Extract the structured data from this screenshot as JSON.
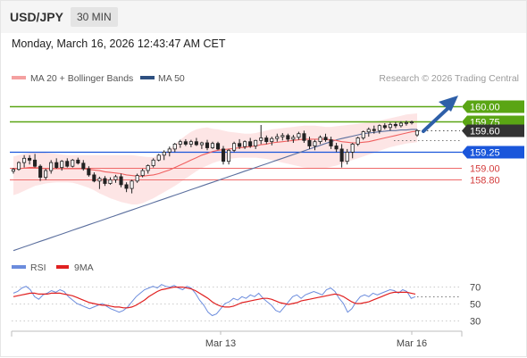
{
  "header": {
    "symbol": "USD/JPY",
    "timeframe": "30 MIN",
    "datetime": "Monday, March 16, 2026 12:43:47 AM CET"
  },
  "legend": {
    "ma20_bb": "MA 20 + Bollinger Bands",
    "ma50": "MA 50",
    "copyright": "Research © 2026 Trading Central",
    "rsi": "RSI",
    "rsi_ma": "9MA"
  },
  "colors": {
    "candle": "#222222",
    "ma20": "#f06060",
    "bb_fill": "#fde0e0",
    "ma50": "#5b6f9e",
    "resistance": "#5aa514",
    "support": "#1a56db",
    "pivot_red": "#ef6a6a",
    "current": "#333333",
    "rsi": "#6b8cdd",
    "rsi_ma": "#e02020",
    "arrow": "#2e5fa8"
  },
  "chart_data": [
    {
      "type": "candlestick",
      "ylim": [
        157.5,
        160.3
      ],
      "x_ticks": [
        "Mar 13",
        "Mar 16"
      ],
      "levels": [
        {
          "value": 160.0,
          "label": "160.00",
          "kind": "resistance"
        },
        {
          "value": 159.75,
          "label": "159.75",
          "kind": "resistance"
        },
        {
          "value": 159.6,
          "label": "159.60",
          "kind": "current"
        },
        {
          "value": 159.25,
          "label": "159.25",
          "kind": "support"
        },
        {
          "value": 159.0,
          "label": "159.00",
          "kind": "pivot"
        },
        {
          "value": 158.8,
          "label": "158.80",
          "kind": "pivot"
        }
      ],
      "candles": [
        [
          158.94,
          158.99,
          158.9,
          158.97
        ],
        [
          158.97,
          159.1,
          158.95,
          159.08
        ],
        [
          159.08,
          159.2,
          159.0,
          159.15
        ],
        [
          159.15,
          159.2,
          159.05,
          159.12
        ],
        [
          159.12,
          159.22,
          159.0,
          159.02
        ],
        [
          159.02,
          159.05,
          158.78,
          158.84
        ],
        [
          158.84,
          158.98,
          158.8,
          158.95
        ],
        [
          158.95,
          159.12,
          158.9,
          159.08
        ],
        [
          159.08,
          159.15,
          158.98,
          159.0
        ],
        [
          159.0,
          159.12,
          158.95,
          159.1
        ],
        [
          159.1,
          159.15,
          159.0,
          159.02
        ],
        [
          159.02,
          159.14,
          159.0,
          159.12
        ],
        [
          159.12,
          159.16,
          159.05,
          159.07
        ],
        [
          159.07,
          159.12,
          158.95,
          158.98
        ],
        [
          158.98,
          159.02,
          158.85,
          158.88
        ],
        [
          158.88,
          158.92,
          158.76,
          158.78
        ],
        [
          158.78,
          158.85,
          158.65,
          158.82
        ],
        [
          158.82,
          158.86,
          158.7,
          158.74
        ],
        [
          158.74,
          158.84,
          158.72,
          158.8
        ],
        [
          158.8,
          158.88,
          158.75,
          158.85
        ],
        [
          158.85,
          158.9,
          158.68,
          158.72
        ],
        [
          158.72,
          158.76,
          158.6,
          158.66
        ],
        [
          158.66,
          158.8,
          158.58,
          158.78
        ],
        [
          158.78,
          158.9,
          158.75,
          158.87
        ],
        [
          158.87,
          158.98,
          158.84,
          158.95
        ],
        [
          158.95,
          159.05,
          158.9,
          159.03
        ],
        [
          159.03,
          159.15,
          159.0,
          159.12
        ],
        [
          159.12,
          159.22,
          159.1,
          159.2
        ],
        [
          159.2,
          159.28,
          159.12,
          159.25
        ],
        [
          159.25,
          159.34,
          159.18,
          159.3
        ],
        [
          159.3,
          159.4,
          159.25,
          159.38
        ],
        [
          159.38,
          159.45,
          159.32,
          159.42
        ],
        [
          159.42,
          159.46,
          159.35,
          159.38
        ],
        [
          159.38,
          159.45,
          159.33,
          159.42
        ],
        [
          159.42,
          159.48,
          159.35,
          159.37
        ],
        [
          159.37,
          159.42,
          159.3,
          159.4
        ],
        [
          159.4,
          159.45,
          159.28,
          159.32
        ],
        [
          159.32,
          159.42,
          159.3,
          159.39
        ],
        [
          159.39,
          159.42,
          159.28,
          159.3
        ],
        [
          159.3,
          159.35,
          159.05,
          159.1
        ],
        [
          159.1,
          159.3,
          159.05,
          159.28
        ],
        [
          159.28,
          159.42,
          159.25,
          159.39
        ],
        [
          159.39,
          159.46,
          159.3,
          159.34
        ],
        [
          159.34,
          159.44,
          159.3,
          159.42
        ],
        [
          159.42,
          159.48,
          159.32,
          159.35
        ],
        [
          159.35,
          159.45,
          159.3,
          159.44
        ],
        [
          159.44,
          159.69,
          159.38,
          159.48
        ],
        [
          159.48,
          159.52,
          159.38,
          159.42
        ],
        [
          159.42,
          159.5,
          159.36,
          159.47
        ],
        [
          159.47,
          159.55,
          159.42,
          159.5
        ],
        [
          159.5,
          159.56,
          159.44,
          159.52
        ],
        [
          159.52,
          159.55,
          159.42,
          159.46
        ],
        [
          159.46,
          159.53,
          159.4,
          159.49
        ],
        [
          159.49,
          159.58,
          159.45,
          159.55
        ],
        [
          159.55,
          159.6,
          159.4,
          159.44
        ],
        [
          159.44,
          159.5,
          159.3,
          159.35
        ],
        [
          159.35,
          159.45,
          159.28,
          159.42
        ],
        [
          159.42,
          159.52,
          159.38,
          159.49
        ],
        [
          159.49,
          159.55,
          159.42,
          159.45
        ],
        [
          159.45,
          159.5,
          159.3,
          159.35
        ],
        [
          159.35,
          159.4,
          159.25,
          159.3
        ],
        [
          159.3,
          159.38,
          159.0,
          159.1
        ],
        [
          159.1,
          159.3,
          159.05,
          159.25
        ],
        [
          159.25,
          159.4,
          159.15,
          159.38
        ],
        [
          159.38,
          159.5,
          159.35,
          159.48
        ],
        [
          159.48,
          159.6,
          159.45,
          159.58
        ],
        [
          159.58,
          159.65,
          159.5,
          159.62
        ],
        [
          159.62,
          159.68,
          159.55,
          159.6
        ],
        [
          159.6,
          159.7,
          159.55,
          159.68
        ],
        [
          159.68,
          159.72,
          159.62,
          159.65
        ],
        [
          159.65,
          159.73,
          159.6,
          159.7
        ],
        [
          159.7,
          159.74,
          159.64,
          159.68
        ],
        [
          159.68,
          159.75,
          159.65,
          159.72
        ],
        [
          159.72,
          159.76,
          159.68,
          159.73
        ],
        [
          159.73,
          159.76,
          159.7,
          159.74
        ],
        [
          159.53,
          159.62,
          159.5,
          159.6
        ]
      ],
      "ma20": [
        158.98,
        158.98,
        158.99,
        159.0,
        159.0,
        158.99,
        158.98,
        158.98,
        158.98,
        158.98,
        158.98,
        158.98,
        158.98,
        158.98,
        158.97,
        158.96,
        158.95,
        158.93,
        158.92,
        158.91,
        158.9,
        158.88,
        158.87,
        158.86,
        158.86,
        158.87,
        158.88,
        158.9,
        158.93,
        158.96,
        159.0,
        159.04,
        159.08,
        159.12,
        159.16,
        159.2,
        159.23,
        159.26,
        159.28,
        159.29,
        159.3,
        159.31,
        159.32,
        159.33,
        159.34,
        159.35,
        159.37,
        159.38,
        159.4,
        159.41,
        159.42,
        159.43,
        159.44,
        159.45,
        159.46,
        159.46,
        159.46,
        159.46,
        159.46,
        159.45,
        159.44,
        159.42,
        159.41,
        159.4,
        159.4,
        159.41,
        159.42,
        159.44,
        159.46,
        159.48,
        159.5,
        159.52,
        159.54,
        159.56,
        159.58,
        159.59
      ],
      "bb_upper": [
        159.18,
        159.2,
        159.22,
        159.24,
        159.25,
        159.25,
        159.24,
        159.23,
        159.22,
        159.21,
        159.2,
        159.2,
        159.2,
        159.2,
        159.2,
        159.2,
        159.2,
        159.2,
        159.2,
        159.2,
        159.2,
        159.2,
        159.2,
        159.19,
        159.18,
        159.17,
        159.17,
        159.19,
        159.23,
        159.3,
        159.37,
        159.45,
        159.52,
        159.58,
        159.62,
        159.64,
        159.65,
        159.63,
        159.62,
        159.6,
        159.58,
        159.57,
        159.56,
        159.55,
        159.55,
        159.56,
        159.58,
        159.6,
        159.62,
        159.63,
        159.64,
        159.65,
        159.66,
        159.67,
        159.68,
        159.68,
        159.68,
        159.67,
        159.66,
        159.66,
        159.67,
        159.68,
        159.69,
        159.7,
        159.71,
        159.72,
        159.73,
        159.75,
        159.76,
        159.78,
        159.8,
        159.82,
        159.84,
        159.86,
        159.87,
        159.88
      ],
      "bb_lower": [
        158.55,
        158.58,
        158.62,
        158.66,
        158.7,
        158.72,
        158.74,
        158.75,
        158.76,
        158.76,
        158.76,
        158.75,
        158.73,
        158.7,
        158.67,
        158.63,
        158.58,
        158.54,
        158.5,
        158.47,
        158.44,
        158.42,
        158.4,
        158.4,
        158.42,
        158.46,
        158.5,
        158.55,
        158.6,
        158.65,
        158.7,
        158.76,
        158.82,
        158.88,
        158.94,
        158.99,
        159.03,
        159.07,
        159.1,
        159.12,
        159.14,
        159.15,
        159.16,
        159.16,
        159.16,
        159.16,
        159.15,
        159.14,
        159.12,
        159.1,
        159.08,
        159.06,
        159.04,
        159.02,
        159.0,
        158.99,
        158.98,
        158.98,
        158.99,
        159.01,
        159.03,
        159.06,
        159.09,
        159.12,
        159.15,
        159.18,
        159.21,
        159.24,
        159.27,
        159.3,
        159.33,
        159.35,
        159.37,
        159.39,
        159.4,
        159.41
      ],
      "ma50": [
        157.65,
        157.68,
        157.71,
        157.74,
        157.77,
        157.8,
        157.83,
        157.86,
        157.89,
        157.92,
        157.95,
        157.98,
        158.01,
        158.04,
        158.07,
        158.1,
        158.13,
        158.16,
        158.19,
        158.22,
        158.25,
        158.28,
        158.31,
        158.34,
        158.37,
        158.4,
        158.43,
        158.46,
        158.49,
        158.52,
        158.55,
        158.58,
        158.61,
        158.64,
        158.67,
        158.7,
        158.73,
        158.76,
        158.79,
        158.82,
        158.85,
        158.88,
        158.91,
        158.94,
        158.97,
        159.0,
        159.03,
        159.06,
        159.09,
        159.12,
        159.15,
        159.18,
        159.21,
        159.24,
        159.27,
        159.3,
        159.33,
        159.36,
        159.39,
        159.42,
        159.45,
        159.47,
        159.49,
        159.51,
        159.53,
        159.55,
        159.56,
        159.57,
        159.58,
        159.59,
        159.6,
        159.6,
        159.61,
        159.61,
        159.62,
        159.62
      ]
    },
    {
      "type": "line",
      "ylim": [
        20,
        80
      ],
      "y_ticks": [
        "70",
        "50",
        "30"
      ],
      "series": [
        {
          "name": "RSI",
          "values": [
            62,
            64,
            68,
            70,
            66,
            58,
            55,
            60,
            62,
            65,
            63,
            66,
            64,
            58,
            54,
            50,
            48,
            46,
            44,
            46,
            48,
            50,
            47,
            44,
            42,
            40,
            42,
            46,
            52,
            58,
            62,
            66,
            68,
            70,
            68,
            72,
            70,
            69,
            71,
            68,
            66,
            70,
            68,
            62,
            54,
            48,
            40,
            36,
            38,
            44,
            50,
            52,
            56,
            54,
            58,
            56,
            60,
            58,
            62,
            56,
            52,
            48,
            42,
            40,
            46,
            52,
            58,
            60,
            56,
            60,
            62,
            64,
            62,
            60,
            66,
            68,
            64,
            56,
            50,
            40,
            44,
            52,
            58,
            60,
            58,
            62,
            60,
            62,
            64,
            66,
            65,
            62,
            66,
            64,
            56,
            58
          ]
        },
        {
          "name": "9MA",
          "values": [
            58,
            59,
            60,
            61,
            62,
            62,
            61,
            61,
            61,
            62,
            62,
            62,
            61,
            60,
            59,
            57,
            55,
            53,
            51,
            50,
            49,
            48,
            48,
            47,
            46,
            46,
            45,
            45,
            46,
            48,
            51,
            54,
            58,
            61,
            64,
            66,
            67,
            68,
            69,
            69,
            69,
            68,
            67,
            65,
            62,
            59,
            56,
            52,
            49,
            47,
            46,
            46,
            47,
            49,
            51,
            52,
            53,
            54,
            55,
            56,
            56,
            55,
            53,
            51,
            50,
            49,
            50,
            51,
            53,
            54,
            55,
            56,
            57,
            58,
            59,
            60,
            61,
            60,
            58,
            55,
            52,
            50,
            50,
            51,
            52,
            54,
            56,
            58,
            60,
            62,
            63,
            63,
            63,
            63,
            62,
            61
          ]
        }
      ]
    }
  ]
}
